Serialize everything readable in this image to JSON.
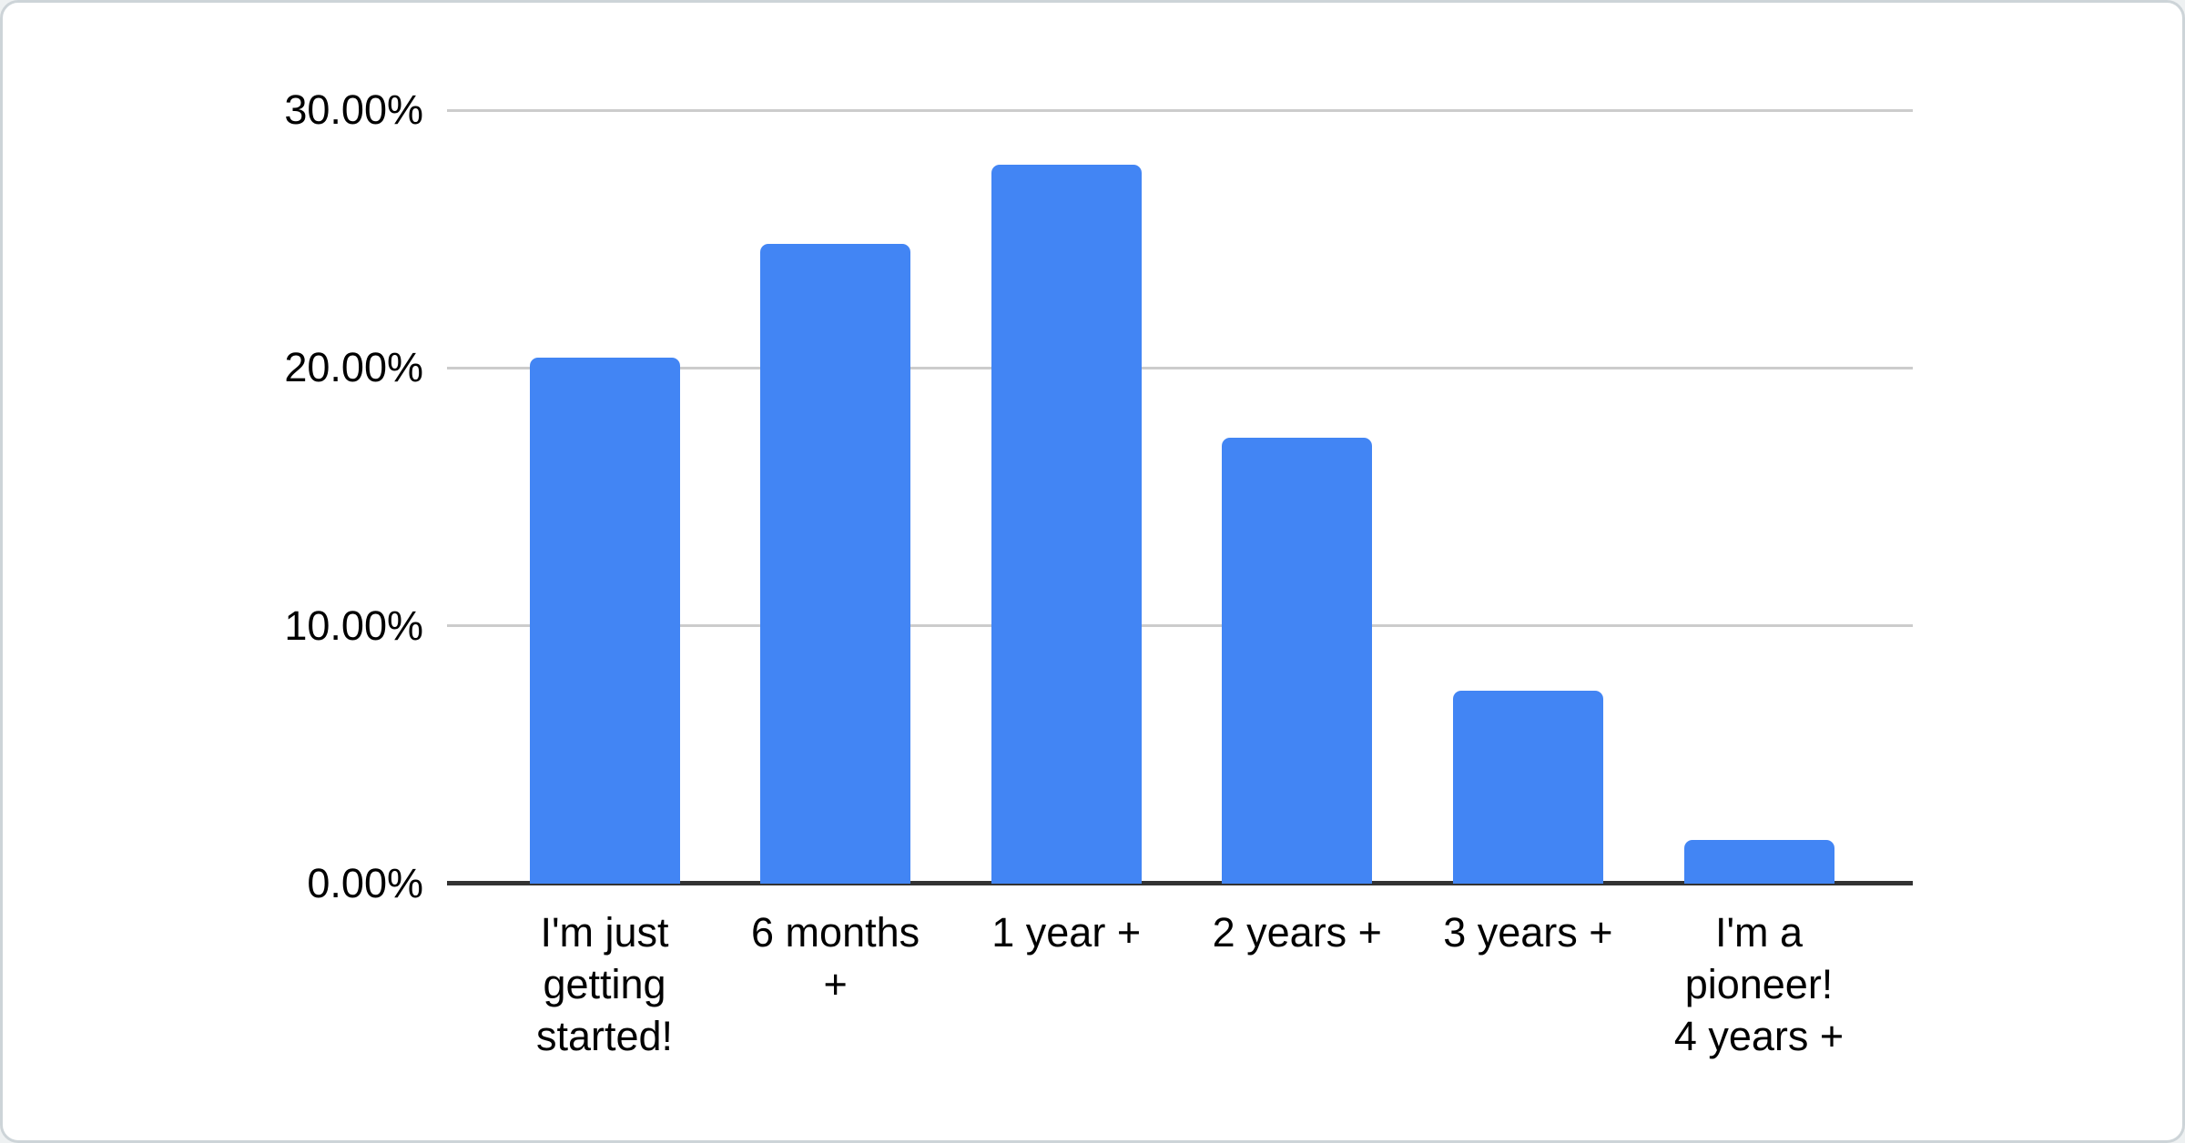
{
  "chart_data": {
    "type": "bar",
    "title": "",
    "xlabel": "",
    "ylabel": "",
    "unit": "%",
    "categories": [
      "I'm just getting started!",
      "6 months +",
      "1 year +",
      "2 years +",
      "3 years +",
      "I'm a pioneer! 4 years +"
    ],
    "category_label_lines": [
      [
        "I'm just",
        "getting",
        "started!"
      ],
      [
        "6 months",
        "+"
      ],
      [
        "1 year +"
      ],
      [
        "2 years +"
      ],
      [
        "3 years +"
      ],
      [
        "I'm a",
        "pioneer!",
        "4 years +"
      ]
    ],
    "values": [
      20.4,
      24.8,
      27.9,
      17.3,
      7.5,
      1.7
    ],
    "ylim": [
      0,
      30
    ],
    "y_ticks": [
      {
        "value": 0,
        "label": "0.00%"
      },
      {
        "value": 10,
        "label": "10.00%"
      },
      {
        "value": 20,
        "label": "20.00%"
      },
      {
        "value": 30,
        "label": "30.00%"
      }
    ],
    "grid": true,
    "legend_position": "none",
    "colors": {
      "bar": "#4285f4",
      "grid": "#cccccc",
      "axis": "#333333",
      "text": "#000000",
      "card_border": "#cdd4d8"
    }
  }
}
